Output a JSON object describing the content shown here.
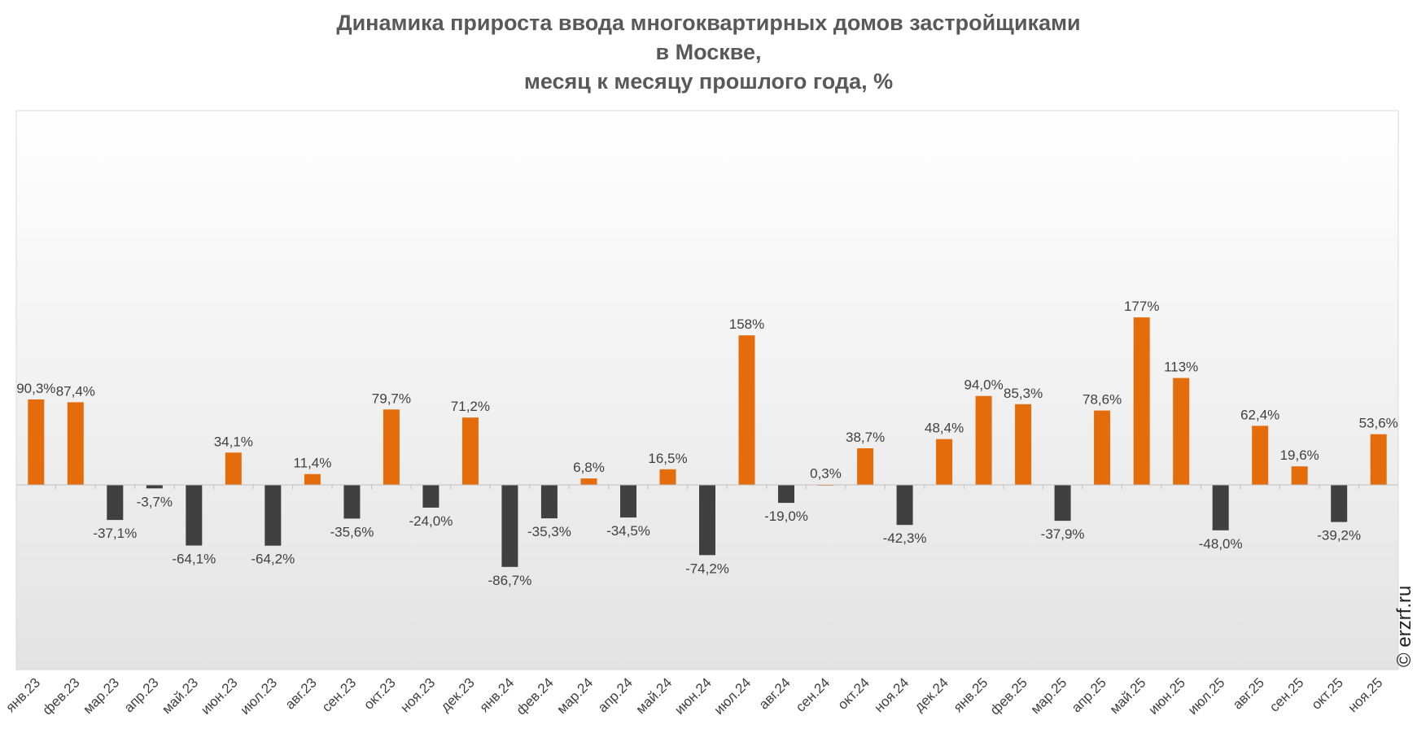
{
  "chart_data": {
    "type": "bar",
    "title_lines": [
      "Динамика прироста ввода многоквартирных домов застройщиками",
      "в Москве,",
      "месяц к месяцу прошлого года, %"
    ],
    "categories": [
      "янв.23",
      "фев.23",
      "мар.23",
      "апр.23",
      "май.23",
      "июн.23",
      "июл.23",
      "авг.23",
      "сен.23",
      "окт.23",
      "ноя.23",
      "дек.23",
      "янв.24",
      "фев.24",
      "мар.24",
      "апр.24",
      "май.24",
      "июн.24",
      "июл.24",
      "авг.24",
      "сен.24",
      "окт.24",
      "ноя.24",
      "дек.24",
      "янв.25",
      "фев.25",
      "мар.25",
      "апр.25",
      "май.25",
      "июн.25",
      "июл.25",
      "авг.25",
      "сен.25",
      "окт.25",
      "ноя.25"
    ],
    "values": [
      90.3,
      87.4,
      -37.1,
      -3.7,
      -64.1,
      34.1,
      -64.2,
      11.4,
      -35.6,
      79.7,
      -24.0,
      71.2,
      -86.7,
      -35.3,
      6.8,
      -34.5,
      16.5,
      -74.2,
      158,
      -19.0,
      0.3,
      38.7,
      -42.3,
      48.4,
      94.0,
      85.3,
      -37.9,
      78.6,
      177,
      113,
      -48.0,
      62.4,
      19.6,
      -39.2,
      53.6
    ],
    "labels": [
      "90,3%",
      "87,4%",
      "-37,1%",
      "-3,7%",
      "-64,1%",
      "34,1%",
      "-64,2%",
      "11,4%",
      "-35,6%",
      "79,7%",
      "-24,0%",
      "71,2%",
      "-86,7%",
      "-35,3%",
      "6,8%",
      "-34,5%",
      "16,5%",
      "-74,2%",
      "158%",
      "-19,0%",
      "0,3%",
      "38,7%",
      "-42,3%",
      "48,4%",
      "94,0%",
      "85,3%",
      "-37,9%",
      "78,6%",
      "177%",
      "113%",
      "-48,0%",
      "62,4%",
      "19,6%",
      "-39,2%",
      "53,6%"
    ],
    "ylim": [
      -100,
      200
    ],
    "grid": false,
    "legend": "none",
    "colors": {
      "positive": "#e46c0a",
      "negative": "#404040",
      "text": "#404040",
      "title": "#595959"
    }
  },
  "watermark": "© erzrf.ru"
}
